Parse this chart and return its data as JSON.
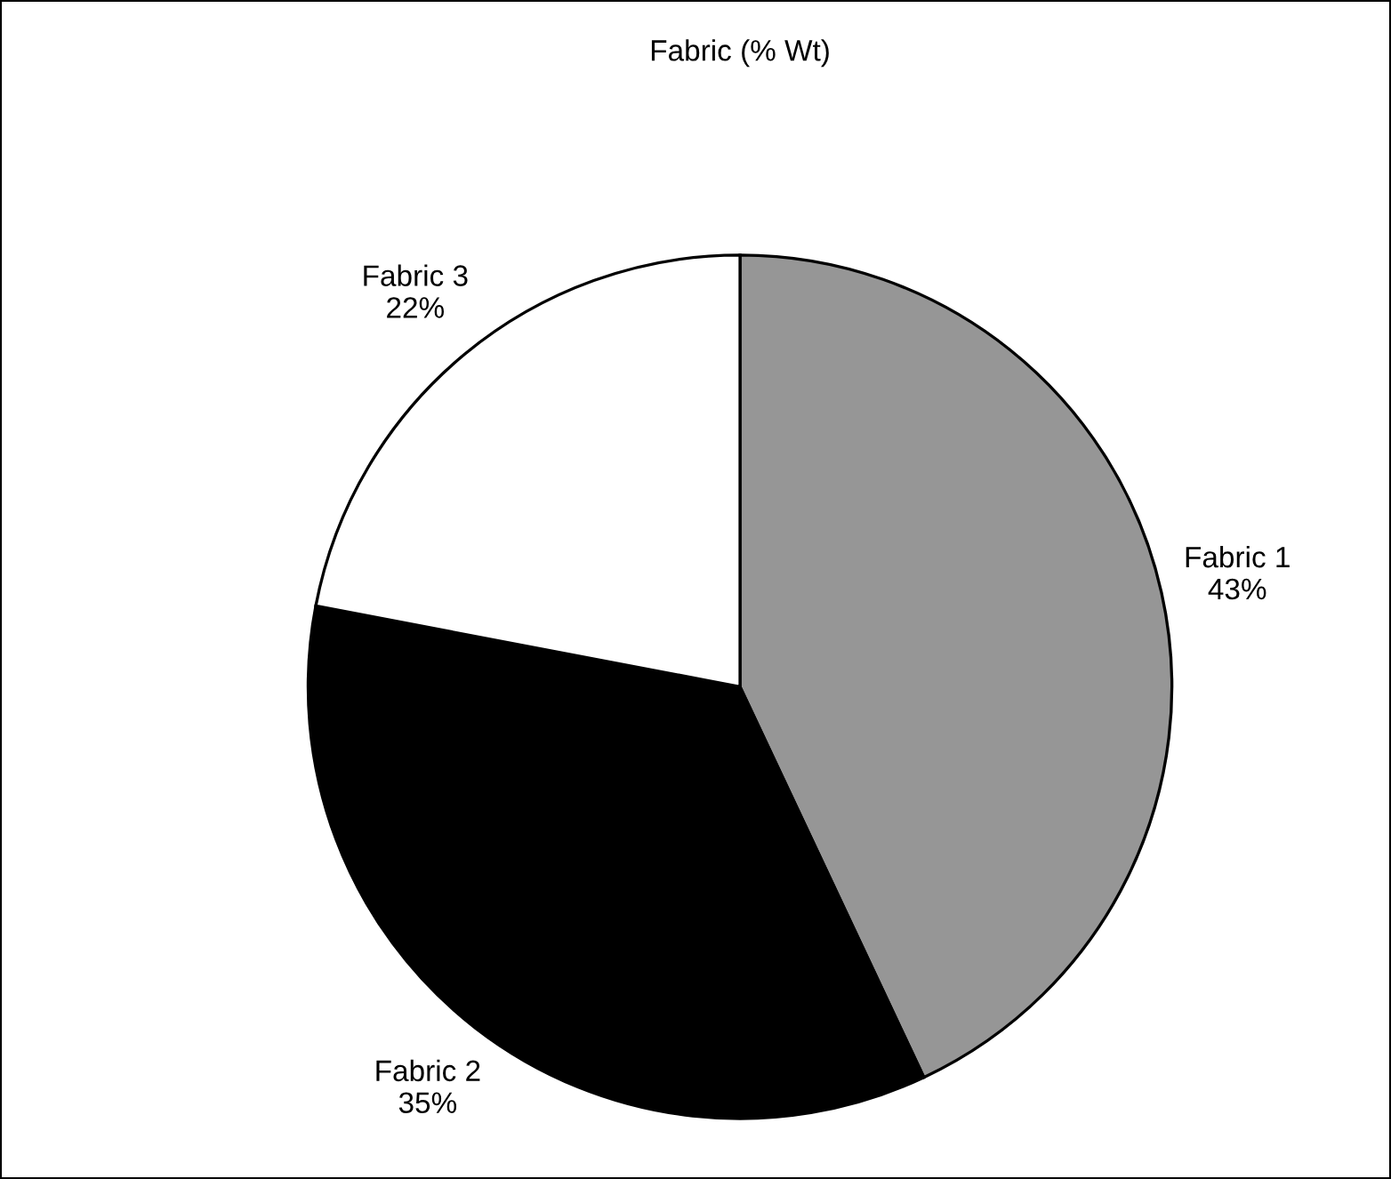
{
  "chart_data": {
    "type": "pie",
    "title": "Fabric (% Wt)",
    "categories": [
      "Fabric 1",
      "Fabric 2",
      "Fabric 3"
    ],
    "values": [
      43,
      35,
      22
    ],
    "colors": [
      "#969696",
      "#000000",
      "#ffffff"
    ],
    "value_labels": [
      "43%",
      "35%",
      "22%"
    ]
  }
}
